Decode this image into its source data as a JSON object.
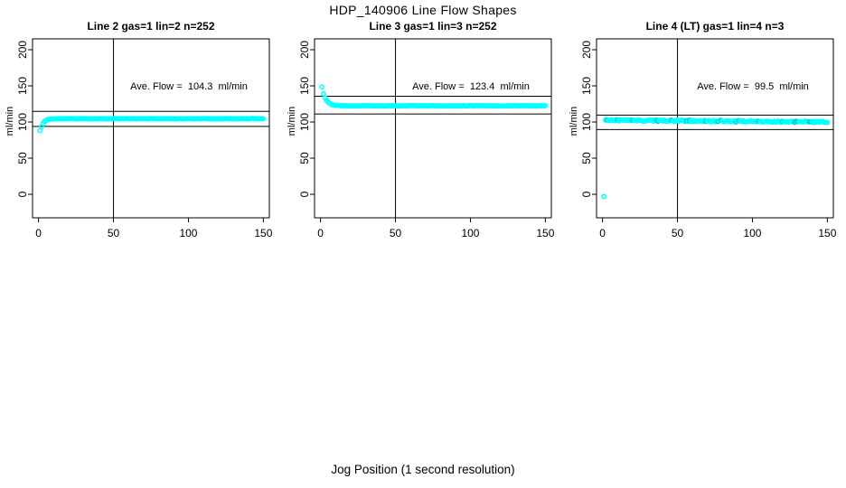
{
  "figure": {
    "main_title": "HDP_140906  Line Flow Shapes",
    "x_axis_label": "Jog Position (1 second resolution)",
    "y_axis_label": "ml/min",
    "background_color": "#ffffff",
    "line_color": "#000000",
    "point_color": "#00ffff",
    "point_color_dark": "#00cdcd"
  },
  "chart_data": [
    {
      "type": "scatter",
      "title": "Line 2 gas=1 lin=2 n=252",
      "annotation": "Ave. Flow =  104.3  ml/min",
      "ave_flow_ml_min": 104.3,
      "n": 252,
      "xlabel_ticks": [
        0,
        50,
        100,
        150
      ],
      "ylabel_ticks": [
        0,
        50,
        100,
        150,
        200
      ],
      "xlim": [
        -4,
        154
      ],
      "ylim": [
        -32.5,
        215
      ],
      "vline_x": 50,
      "hlines": [
        93.9,
        114.7
      ],
      "series": {
        "shape": "exp-rise-to-plateau",
        "first_point": [
          1,
          88
        ],
        "x_start": 2,
        "x_end": 150,
        "plateau": 104.5,
        "amplitude": -11,
        "tau": 1.9,
        "slope": 0,
        "noise": 0.25,
        "seed": 11,
        "dark_fraction": 0
      }
    },
    {
      "type": "scatter",
      "title": "Line 3 gas=1 lin=3 n=252",
      "annotation": "Ave. Flow =  123.4  ml/min",
      "ave_flow_ml_min": 123.4,
      "n": 252,
      "xlabel_ticks": [
        0,
        50,
        100,
        150
      ],
      "ylabel_ticks": [
        0,
        50,
        100,
        150,
        200
      ],
      "xlim": [
        -4,
        154
      ],
      "ylim": [
        -32.5,
        215
      ],
      "vline_x": 50,
      "hlines": [
        111.1,
        135.7
      ],
      "series": {
        "shape": "exp-decay-to-plateau",
        "first_point": [
          1,
          148.5
        ],
        "x_start": 2,
        "x_end": 150,
        "plateau": 122.4,
        "amplitude": 16.5,
        "tau": 2.6,
        "slope": 0,
        "noise": 0.25,
        "seed": 22,
        "dark_fraction": 0
      }
    },
    {
      "type": "scatter",
      "title": "Line 4 (LT) gas=1 lin=4 n=3",
      "annotation": "Ave. Flow =  99.5  ml/min",
      "ave_flow_ml_min": 99.5,
      "n": 3,
      "xlabel_ticks": [
        0,
        50,
        100,
        150
      ],
      "ylabel_ticks": [
        0,
        50,
        100,
        150,
        200
      ],
      "xlim": [
        -4,
        154
      ],
      "ylim": [
        -32.5,
        215
      ],
      "vline_x": 50,
      "hlines": [
        89.6,
        109.5
      ],
      "series": {
        "shape": "flat-with-noise",
        "first_point": [
          1,
          -3
        ],
        "x_start": 2,
        "x_end": 150,
        "plateau": 102.6,
        "amplitude": 0,
        "tau": 1,
        "slope": -0.018,
        "noise": 1.1,
        "seed": 33,
        "dark_fraction": 0.16
      }
    }
  ]
}
